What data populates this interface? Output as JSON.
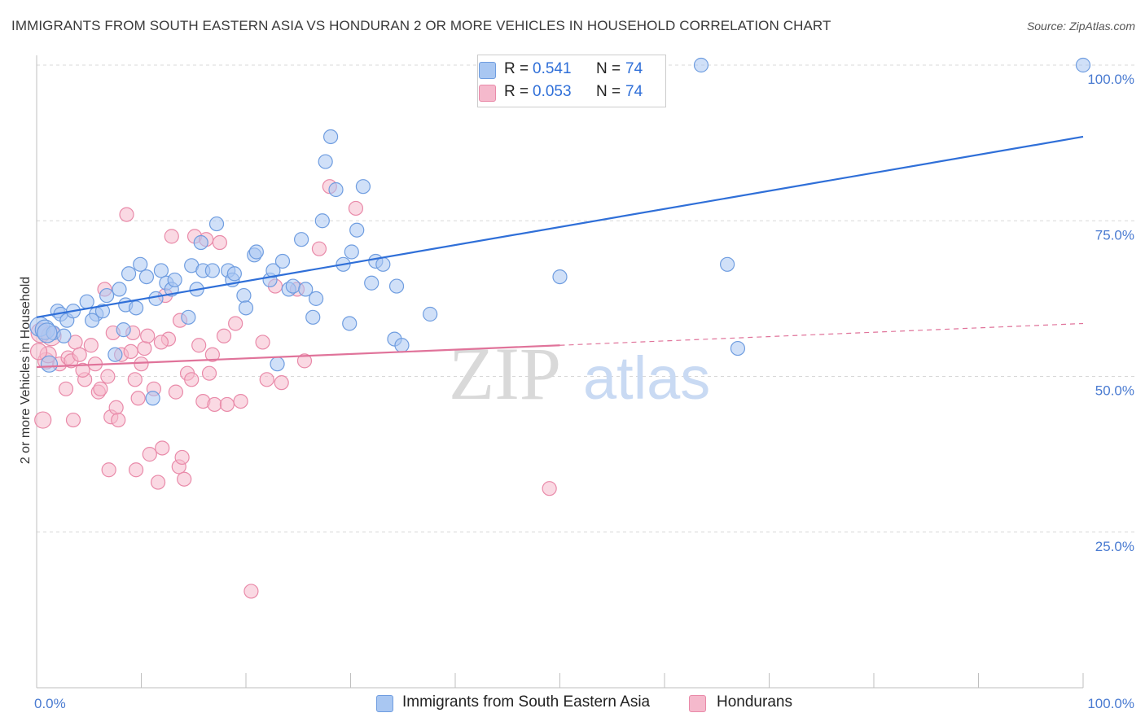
{
  "title": "IMMIGRANTS FROM SOUTH EASTERN ASIA VS HONDURAN 2 OR MORE VEHICLES IN HOUSEHOLD CORRELATION CHART",
  "source": "Source: ZipAtlas.com",
  "watermark": {
    "zip": "ZIP",
    "atlas": "atlas"
  },
  "legend": {
    "r_label": "R =",
    "n_label": "N =",
    "series": [
      {
        "r": "0.541",
        "n": "74"
      },
      {
        "r": "0.053",
        "n": "74"
      }
    ]
  },
  "colors": {
    "blue_fill": "#a9c7f2",
    "blue_stroke": "#6f9de0",
    "blue_line": "#2f6fd8",
    "pink_fill": "#f5b9cc",
    "pink_stroke": "#e98aa9",
    "pink_line": "#e0739a",
    "tick_color": "#4a7bd1"
  },
  "chart_data": {
    "type": "scatter",
    "xlabel": "",
    "ylabel": "2 or more Vehicles in Household",
    "xlim": [
      0,
      100
    ],
    "ylim": [
      0,
      100
    ],
    "x_tick_labels": [
      "0.0%",
      "100.0%"
    ],
    "y_tick_labels": [
      "25.0%",
      "50.0%",
      "75.0%",
      "100.0%"
    ],
    "y_ticks": [
      25,
      50,
      75,
      100
    ],
    "grid": true,
    "legend_position": "top-center",
    "series": [
      {
        "name": "Immigrants from South Eastern Asia",
        "color": "#a9c7f2",
        "trend": {
          "x": [
            0,
            100
          ],
          "y": [
            59.5,
            88.5
          ],
          "style": "solid"
        },
        "points": [
          [
            0.3,
            58.0
          ],
          [
            0.8,
            57.5
          ],
          [
            1.2,
            52.0
          ],
          [
            1.6,
            57.0
          ],
          [
            2.0,
            60.5
          ],
          [
            2.3,
            60.0
          ],
          [
            2.9,
            59.0
          ],
          [
            3.5,
            60.5
          ],
          [
            4.8,
            62.0
          ],
          [
            5.7,
            60.0
          ],
          [
            6.3,
            60.5
          ],
          [
            6.7,
            63.0
          ],
          [
            7.5,
            53.5
          ],
          [
            7.9,
            64.0
          ],
          [
            8.5,
            61.5
          ],
          [
            8.8,
            66.5
          ],
          [
            9.5,
            61.0
          ],
          [
            9.9,
            68.0
          ],
          [
            10.5,
            66.0
          ],
          [
            11.1,
            46.5
          ],
          [
            11.4,
            62.5
          ],
          [
            11.9,
            67.0
          ],
          [
            12.4,
            65.0
          ],
          [
            12.9,
            64.0
          ],
          [
            13.2,
            65.5
          ],
          [
            14.5,
            59.5
          ],
          [
            14.8,
            67.8
          ],
          [
            15.3,
            64.0
          ],
          [
            15.7,
            71.5
          ],
          [
            15.9,
            67.0
          ],
          [
            16.8,
            67.0
          ],
          [
            17.2,
            74.5
          ],
          [
            18.3,
            67.0
          ],
          [
            18.7,
            65.5
          ],
          [
            18.9,
            66.5
          ],
          [
            19.8,
            63.0
          ],
          [
            20.0,
            61.0
          ],
          [
            20.8,
            69.5
          ],
          [
            21.0,
            70.0
          ],
          [
            22.3,
            65.5
          ],
          [
            22.6,
            67.0
          ],
          [
            23.0,
            52.0
          ],
          [
            23.5,
            68.5
          ],
          [
            24.1,
            64.0
          ],
          [
            24.5,
            64.5
          ],
          [
            25.3,
            72.0
          ],
          [
            25.7,
            64.0
          ],
          [
            26.4,
            59.5
          ],
          [
            26.7,
            62.5
          ],
          [
            27.3,
            75.0
          ],
          [
            27.6,
            84.5
          ],
          [
            28.1,
            88.5
          ],
          [
            28.6,
            80.0
          ],
          [
            29.3,
            68.0
          ],
          [
            29.9,
            58.5
          ],
          [
            30.1,
            70.0
          ],
          [
            30.6,
            73.5
          ],
          [
            31.2,
            80.5
          ],
          [
            32.0,
            65.0
          ],
          [
            32.4,
            68.5
          ],
          [
            33.1,
            68.0
          ],
          [
            34.2,
            56.0
          ],
          [
            34.4,
            64.5
          ],
          [
            34.9,
            55.0
          ],
          [
            37.6,
            60.0
          ],
          [
            50.0,
            66.0
          ],
          [
            63.5,
            100.0
          ],
          [
            66.0,
            68.0
          ],
          [
            67.0,
            54.5
          ],
          [
            100.0,
            100.0
          ],
          [
            1.0,
            57.0
          ],
          [
            2.6,
            56.5
          ],
          [
            8.3,
            57.5
          ],
          [
            5.3,
            59.0
          ]
        ]
      },
      {
        "name": "Hondurans",
        "color": "#f5b9cc",
        "trend": {
          "x": [
            0,
            50,
            100
          ],
          "y": [
            51.5,
            55.0,
            58.5
          ],
          "style": "solid-then-dashed"
        },
        "points": [
          [
            0.4,
            57.0
          ],
          [
            0.6,
            43.0
          ],
          [
            0.9,
            52.5
          ],
          [
            1.1,
            53.5
          ],
          [
            1.4,
            56.5
          ],
          [
            2.2,
            52.0
          ],
          [
            2.8,
            48.0
          ],
          [
            3.0,
            53.0
          ],
          [
            3.3,
            52.5
          ],
          [
            3.7,
            55.5
          ],
          [
            4.1,
            53.5
          ],
          [
            4.6,
            49.5
          ],
          [
            5.2,
            55.0
          ],
          [
            5.6,
            52.0
          ],
          [
            5.9,
            47.5
          ],
          [
            6.1,
            48.0
          ],
          [
            6.5,
            64.0
          ],
          [
            6.9,
            35.0
          ],
          [
            7.1,
            43.5
          ],
          [
            7.3,
            57.0
          ],
          [
            7.6,
            45.0
          ],
          [
            7.8,
            43.0
          ],
          [
            8.1,
            53.5
          ],
          [
            8.6,
            76.0
          ],
          [
            9.0,
            54.0
          ],
          [
            9.2,
            57.0
          ],
          [
            9.5,
            35.0
          ],
          [
            9.7,
            46.5
          ],
          [
            10.0,
            52.0
          ],
          [
            10.3,
            54.5
          ],
          [
            10.6,
            56.5
          ],
          [
            10.8,
            37.5
          ],
          [
            11.2,
            48.0
          ],
          [
            11.6,
            33.0
          ],
          [
            12.0,
            38.5
          ],
          [
            12.3,
            63.0
          ],
          [
            12.6,
            56.0
          ],
          [
            12.9,
            72.5
          ],
          [
            13.3,
            47.5
          ],
          [
            13.6,
            35.5
          ],
          [
            13.9,
            37.0
          ],
          [
            14.1,
            33.5
          ],
          [
            14.4,
            50.5
          ],
          [
            14.8,
            49.5
          ],
          [
            15.1,
            72.5
          ],
          [
            15.5,
            55.0
          ],
          [
            15.9,
            46.0
          ],
          [
            16.2,
            72.0
          ],
          [
            16.5,
            50.5
          ],
          [
            17.0,
            45.5
          ],
          [
            17.5,
            71.5
          ],
          [
            17.9,
            56.5
          ],
          [
            18.2,
            45.5
          ],
          [
            19.5,
            46.0
          ],
          [
            20.5,
            15.5
          ],
          [
            22.0,
            49.5
          ],
          [
            22.8,
            64.5
          ],
          [
            23.4,
            49.0
          ],
          [
            24.9,
            64.0
          ],
          [
            27.0,
            70.5
          ],
          [
            28.0,
            80.5
          ],
          [
            30.5,
            77.0
          ],
          [
            49.0,
            32.0
          ],
          [
            3.5,
            43.0
          ],
          [
            4.4,
            51.0
          ],
          [
            6.8,
            50.0
          ],
          [
            9.4,
            49.5
          ],
          [
            11.9,
            55.5
          ],
          [
            13.7,
            59.0
          ],
          [
            16.8,
            53.5
          ],
          [
            19.0,
            58.5
          ],
          [
            21.6,
            55.5
          ],
          [
            25.6,
            52.5
          ],
          [
            0.2,
            54.0
          ]
        ]
      }
    ]
  }
}
